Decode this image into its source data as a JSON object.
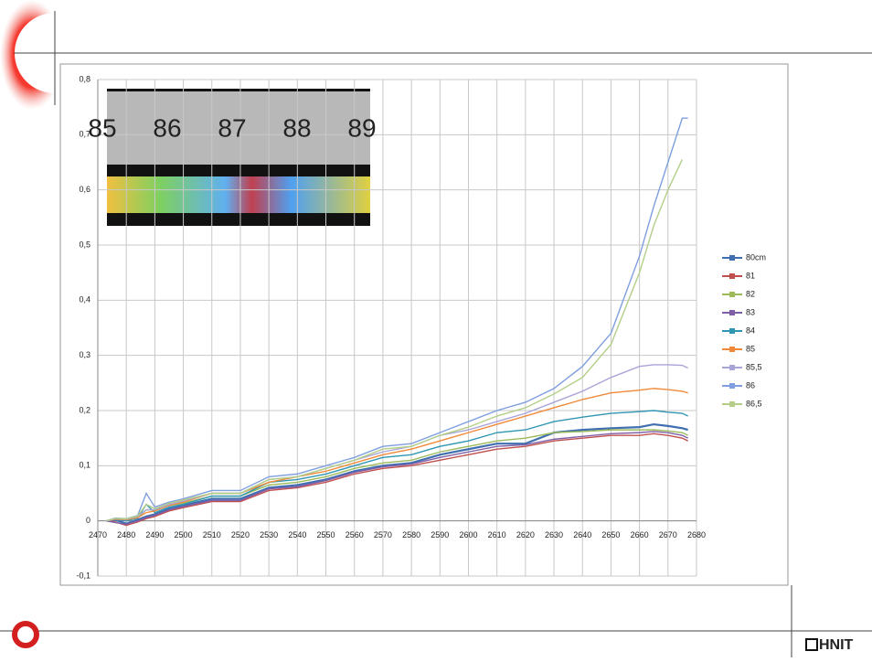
{
  "chart_data": {
    "type": "line",
    "x": [
      2473,
      2476,
      2480,
      2484,
      2487,
      2490,
      2495,
      2500,
      2510,
      2520,
      2530,
      2540,
      2550,
      2560,
      2570,
      2580,
      2590,
      2600,
      2610,
      2620,
      2630,
      2640,
      2650,
      2660,
      2665,
      2670,
      2675,
      2677
    ],
    "series": [
      {
        "name": "80cm",
        "color": "#3f6fb0",
        "values": [
          0,
          0.002,
          -0.005,
          0.002,
          0.008,
          0.012,
          0.022,
          0.028,
          0.04,
          0.04,
          0.06,
          0.065,
          0.075,
          0.09,
          0.1,
          0.105,
          0.12,
          0.13,
          0.14,
          0.14,
          0.16,
          0.165,
          0.168,
          0.17,
          0.175,
          0.172,
          0.168,
          0.165
        ]
      },
      {
        "name": "81",
        "color": "#c0504d",
        "values": [
          0,
          -0.002,
          -0.008,
          -0.002,
          0.004,
          0.008,
          0.018,
          0.024,
          0.035,
          0.035,
          0.055,
          0.06,
          0.07,
          0.085,
          0.095,
          0.1,
          0.11,
          0.12,
          0.13,
          0.135,
          0.145,
          0.15,
          0.155,
          0.155,
          0.158,
          0.155,
          0.15,
          0.145
        ]
      },
      {
        "name": "82",
        "color": "#9bbb59",
        "values": [
          0,
          0.004,
          0.002,
          0.006,
          0.02,
          0.02,
          0.028,
          0.032,
          0.045,
          0.045,
          0.065,
          0.07,
          0.08,
          0.095,
          0.105,
          0.11,
          0.125,
          0.135,
          0.145,
          0.15,
          0.16,
          0.162,
          0.165,
          0.165,
          0.165,
          0.163,
          0.16,
          0.155
        ]
      },
      {
        "name": "83",
        "color": "#7f5fa8",
        "values": [
          0,
          -0.003,
          -0.006,
          0,
          0.006,
          0.01,
          0.02,
          0.026,
          0.037,
          0.037,
          0.058,
          0.062,
          0.073,
          0.088,
          0.098,
          0.103,
          0.115,
          0.125,
          0.135,
          0.138,
          0.148,
          0.153,
          0.158,
          0.16,
          0.162,
          0.16,
          0.155,
          0.15
        ]
      },
      {
        "name": "84",
        "color": "#2f97b3",
        "values": [
          0,
          0.003,
          0,
          0.005,
          0.03,
          0.015,
          0.025,
          0.03,
          0.045,
          0.045,
          0.07,
          0.075,
          0.085,
          0.1,
          0.115,
          0.12,
          0.135,
          0.145,
          0.16,
          0.165,
          0.18,
          0.188,
          0.195,
          0.198,
          0.2,
          0.197,
          0.195,
          0.19
        ]
      },
      {
        "name": "85",
        "color": "#f08a3a",
        "values": [
          0,
          0.003,
          0.002,
          0.006,
          0.015,
          0.018,
          0.028,
          0.034,
          0.05,
          0.05,
          0.07,
          0.08,
          0.09,
          0.105,
          0.12,
          0.13,
          0.145,
          0.16,
          0.175,
          0.19,
          0.205,
          0.22,
          0.232,
          0.237,
          0.24,
          0.238,
          0.235,
          0.232
        ]
      },
      {
        "name": "85,5",
        "color": "#a9a4d8",
        "values": [
          0,
          0.004,
          0.003,
          0.008,
          0.02,
          0.02,
          0.03,
          0.036,
          0.05,
          0.05,
          0.075,
          0.08,
          0.095,
          0.11,
          0.125,
          0.135,
          0.155,
          0.165,
          0.18,
          0.195,
          0.215,
          0.235,
          0.26,
          0.28,
          0.283,
          0.283,
          0.282,
          0.277
        ]
      },
      {
        "name": "86",
        "color": "#7f9fe0",
        "values": [
          0,
          0.005,
          0.004,
          0.01,
          0.05,
          0.025,
          0.034,
          0.04,
          0.055,
          0.055,
          0.08,
          0.085,
          0.1,
          0.115,
          0.135,
          0.14,
          0.16,
          0.18,
          0.2,
          0.215,
          0.24,
          0.28,
          0.34,
          0.48,
          0.57,
          0.65,
          0.73,
          0.73
        ]
      },
      {
        "name": "86,5",
        "color": "#b3cf87",
        "values": [
          0,
          0.004,
          0.004,
          0.009,
          0.03,
          0.022,
          0.032,
          0.038,
          0.05,
          0.05,
          0.075,
          0.08,
          0.095,
          0.11,
          0.13,
          0.135,
          0.155,
          0.17,
          0.19,
          0.205,
          0.23,
          0.26,
          0.32,
          0.45,
          0.535,
          0.6,
          0.655,
          null
        ]
      }
    ],
    "xlim": [
      2470,
      2680
    ],
    "xticks": [
      2470,
      2480,
      2490,
      2500,
      2510,
      2520,
      2530,
      2540,
      2550,
      2560,
      2570,
      2580,
      2590,
      2600,
      2610,
      2620,
      2630,
      2640,
      2650,
      2660,
      2670,
      2680
    ],
    "ylim": [
      -0.1,
      0.8
    ],
    "yticks": [
      {
        "value": -0.1,
        "label": "-0,1"
      },
      0,
      {
        "value": 0.1,
        "label": "0,1"
      },
      {
        "value": 0.2,
        "label": "0,2"
      },
      {
        "value": 0.3,
        "label": "0,3"
      },
      {
        "value": 0.4,
        "label": "0,4"
      },
      {
        "value": 0.5,
        "label": "0,5"
      },
      {
        "value": 0.6,
        "label": "0,6"
      },
      {
        "value": 0.7,
        "label": "0,7"
      },
      {
        "value": 0.8,
        "label": "0,8"
      }
    ],
    "grid": true,
    "legend": "right",
    "inset": {
      "ruler_labels": [
        "85",
        "86",
        "87",
        "88",
        "89"
      ]
    }
  },
  "footer": {
    "logo_text": "HNIT"
  }
}
